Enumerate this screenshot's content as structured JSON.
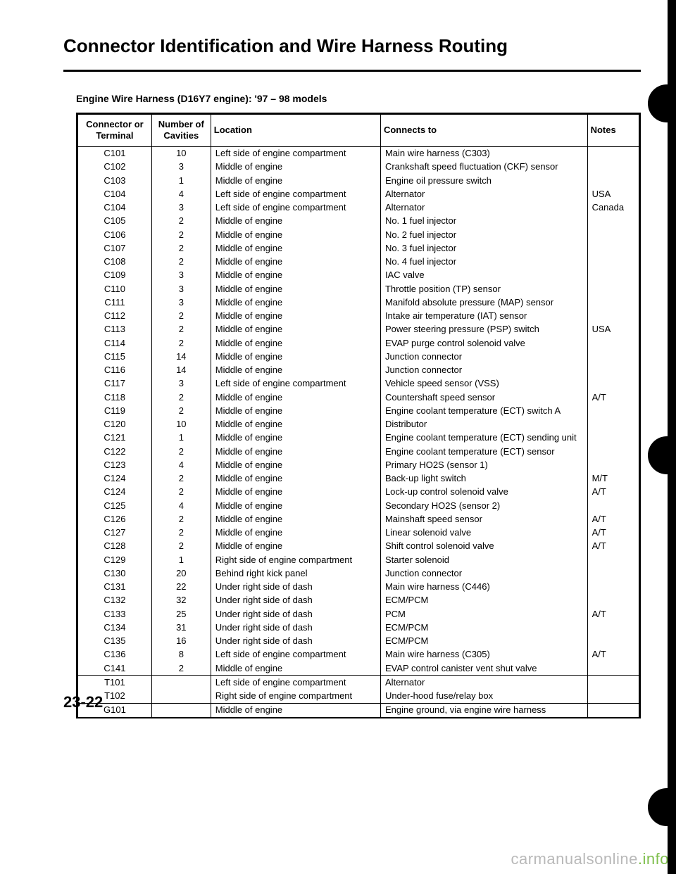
{
  "title": "Connector Identification and Wire Harness Routing",
  "subtitle": "Engine Wire Harness (D16Y7 engine): '97 – 98 models",
  "page_number": "23-22",
  "watermark": {
    "part1": "carmanualsonline",
    "part2": ".info"
  },
  "columns": {
    "connector": "Connector or Terminal",
    "cavities": "Number of Cavities",
    "location": "Location",
    "connects": "Connects to",
    "notes": "Notes"
  },
  "sections": [
    {
      "rows": [
        {
          "conn": "C101",
          "cav": "10",
          "loc": "Left side of engine compartment",
          "to": "Main wire harness (C303)",
          "note": ""
        },
        {
          "conn": "C102",
          "cav": "3",
          "loc": "Middle of engine",
          "to": "Crankshaft speed fluctuation (CKF) sensor",
          "note": ""
        },
        {
          "conn": "C103",
          "cav": "1",
          "loc": "Middle of engine",
          "to": "Engine oil pressure switch",
          "note": ""
        },
        {
          "conn": "C104",
          "cav": "4",
          "loc": "Left side of engine compartment",
          "to": "Alternator",
          "note": "USA"
        },
        {
          "conn": "C104",
          "cav": "3",
          "loc": "Left side of engine compartment",
          "to": "Alternator",
          "note": "Canada"
        },
        {
          "conn": "C105",
          "cav": "2",
          "loc": "Middle of engine",
          "to": "No. 1 fuel injector",
          "note": ""
        },
        {
          "conn": "C106",
          "cav": "2",
          "loc": "Middle of engine",
          "to": "No. 2 fuel injector",
          "note": ""
        },
        {
          "conn": "C107",
          "cav": "2",
          "loc": "Middle of engine",
          "to": "No. 3 fuel injector",
          "note": ""
        },
        {
          "conn": "C108",
          "cav": "2",
          "loc": "Middle of engine",
          "to": "No. 4 fuel injector",
          "note": ""
        },
        {
          "conn": "C109",
          "cav": "3",
          "loc": "Middle of engine",
          "to": "IAC valve",
          "note": ""
        },
        {
          "conn": "C110",
          "cav": "3",
          "loc": "Middle of engine",
          "to": "Throttle position (TP) sensor",
          "note": ""
        },
        {
          "conn": "C111",
          "cav": "3",
          "loc": "Middle of engine",
          "to": "Manifold absolute pressure (MAP) sensor",
          "note": ""
        },
        {
          "conn": "C112",
          "cav": "2",
          "loc": "Middle of engine",
          "to": "Intake air temperature (IAT) sensor",
          "note": ""
        },
        {
          "conn": "C113",
          "cav": "2",
          "loc": "Middle of engine",
          "to": "Power steering pressure (PSP) switch",
          "note": "USA"
        },
        {
          "conn": "C114",
          "cav": "2",
          "loc": "Middle of engine",
          "to": "EVAP purge control solenoid valve",
          "note": ""
        },
        {
          "conn": "C115",
          "cav": "14",
          "loc": "Middle of engine",
          "to": "Junction connector",
          "note": ""
        },
        {
          "conn": "C116",
          "cav": "14",
          "loc": "Middle of engine",
          "to": "Junction connector",
          "note": ""
        },
        {
          "conn": "C117",
          "cav": "3",
          "loc": "Left side of engine compartment",
          "to": "Vehicle speed sensor (VSS)",
          "note": ""
        },
        {
          "conn": "C118",
          "cav": "2",
          "loc": "Middle of engine",
          "to": "Countershaft speed sensor",
          "note": "A/T"
        },
        {
          "conn": "C119",
          "cav": "2",
          "loc": "Middle of engine",
          "to": "Engine coolant temperature (ECT) switch A",
          "note": ""
        },
        {
          "conn": "C120",
          "cav": "10",
          "loc": "Middle of engine",
          "to": "Distributor",
          "note": ""
        },
        {
          "conn": "C121",
          "cav": "1",
          "loc": "Middle of engine",
          "to": "Engine coolant temperature (ECT) sending unit",
          "note": ""
        },
        {
          "conn": "C122",
          "cav": "2",
          "loc": "Middle of engine",
          "to": "Engine coolant temperature (ECT) sensor",
          "note": ""
        },
        {
          "conn": "C123",
          "cav": "4",
          "loc": "Middle of engine",
          "to": "Primary HO2S (sensor 1)",
          "note": ""
        },
        {
          "conn": "C124",
          "cav": "2",
          "loc": "Middle of engine",
          "to": "Back-up light switch",
          "note": "M/T"
        },
        {
          "conn": "C124",
          "cav": "2",
          "loc": "Middle of engine",
          "to": "Lock-up control solenoid valve",
          "note": "A/T"
        },
        {
          "conn": "C125",
          "cav": "4",
          "loc": "Middle of engine",
          "to": "Secondary HO2S (sensor 2)",
          "note": ""
        },
        {
          "conn": "C126",
          "cav": "2",
          "loc": "Middle of engine",
          "to": "Mainshaft speed sensor",
          "note": "A/T"
        },
        {
          "conn": "C127",
          "cav": "2",
          "loc": "Middle of engine",
          "to": "Linear solenoid valve",
          "note": "A/T"
        },
        {
          "conn": "C128",
          "cav": "2",
          "loc": "Middle of engine",
          "to": "Shift control solenoid valve",
          "note": "A/T"
        },
        {
          "conn": "C129",
          "cav": "1",
          "loc": "Right side of engine compartment",
          "to": "Starter solenoid",
          "note": ""
        },
        {
          "conn": "C130",
          "cav": "20",
          "loc": "Behind right kick panel",
          "to": "Junction connector",
          "note": ""
        },
        {
          "conn": "C131",
          "cav": "22",
          "loc": "Under right side of dash",
          "to": "Main wire harness (C446)",
          "note": ""
        },
        {
          "conn": "C132",
          "cav": "32",
          "loc": "Under right side of dash",
          "to": "ECM/PCM",
          "note": ""
        },
        {
          "conn": "C133",
          "cav": "25",
          "loc": "Under right side of dash",
          "to": "PCM",
          "note": "A/T"
        },
        {
          "conn": "C134",
          "cav": "31",
          "loc": "Under right side of dash",
          "to": "ECM/PCM",
          "note": ""
        },
        {
          "conn": "C135",
          "cav": "16",
          "loc": "Under right side of dash",
          "to": "ECM/PCM",
          "note": ""
        },
        {
          "conn": "C136",
          "cav": "8",
          "loc": "Left side of engine compartment",
          "to": "Main wire harness (C305)",
          "note": "A/T"
        },
        {
          "conn": "C141",
          "cav": "2",
          "loc": "Middle of engine",
          "to": "EVAP control canister vent shut valve",
          "note": ""
        }
      ]
    },
    {
      "rows": [
        {
          "conn": "T101",
          "cav": "",
          "loc": "Left side of engine compartment",
          "to": "Alternator",
          "note": ""
        },
        {
          "conn": "T102",
          "cav": "",
          "loc": "Right side of engine compartment",
          "to": "Under-hood fuse/relay box",
          "note": ""
        }
      ]
    },
    {
      "rows": [
        {
          "conn": "G101",
          "cav": "",
          "loc": "Middle of engine",
          "to": "Engine ground, via engine wire harness",
          "note": ""
        }
      ]
    }
  ]
}
